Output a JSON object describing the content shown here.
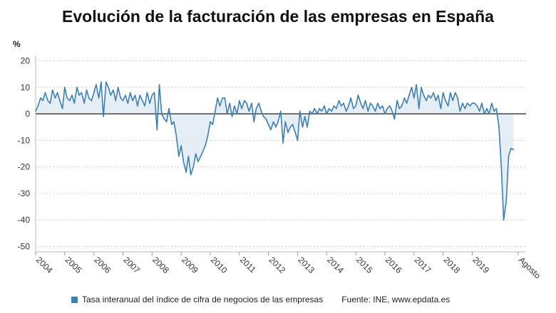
{
  "chart_data": {
    "type": "line",
    "title": "Evolución de la facturación de las empresas en España",
    "ylabel": "%",
    "xlabel": "",
    "ylim": [
      -52,
      22
    ],
    "yticks": [
      20,
      10,
      0,
      -10,
      -20,
      -30,
      -40,
      -50
    ],
    "xlim": [
      2004.0,
      2020.85
    ],
    "xticks": [
      {
        "label": "2004",
        "x": 2004.0
      },
      {
        "label": "2005",
        "x": 2005.0
      },
      {
        "label": "2006",
        "x": 2006.0
      },
      {
        "label": "2007",
        "x": 2007.0
      },
      {
        "label": "2008",
        "x": 2008.0
      },
      {
        "label": "2009",
        "x": 2009.0
      },
      {
        "label": "2010",
        "x": 2010.0
      },
      {
        "label": "2011",
        "x": 2011.0
      },
      {
        "label": "2012",
        "x": 2012.0
      },
      {
        "label": "2013",
        "x": 2013.0
      },
      {
        "label": "2014",
        "x": 2014.0
      },
      {
        "label": "2015",
        "x": 2015.0
      },
      {
        "label": "2016",
        "x": 2016.0
      },
      {
        "label": "2017",
        "x": 2017.0
      },
      {
        "label": "2018",
        "x": 2018.0
      },
      {
        "label": "2019",
        "x": 2019.0
      },
      {
        "label": "Agosto",
        "x": 2020.58
      }
    ],
    "grid": "horizontal dashed",
    "legend_position": "bottom",
    "colors": {
      "line": "#3f7fb0",
      "fill": "#dfeaf3",
      "zero": "#444444",
      "grid": "#cccccc"
    },
    "series": [
      {
        "name": "Tasa interanual del índice de cifra de negocios de las empresas",
        "points": [
          [
            2004.0,
            1
          ],
          [
            2004.08,
            3
          ],
          [
            2004.17,
            6
          ],
          [
            2004.25,
            5
          ],
          [
            2004.33,
            8
          ],
          [
            2004.42,
            5
          ],
          [
            2004.5,
            4
          ],
          [
            2004.58,
            9
          ],
          [
            2004.67,
            6
          ],
          [
            2004.75,
            8
          ],
          [
            2004.83,
            5
          ],
          [
            2004.92,
            2
          ],
          [
            2005.0,
            10
          ],
          [
            2005.08,
            6
          ],
          [
            2005.17,
            5
          ],
          [
            2005.25,
            7
          ],
          [
            2005.33,
            4
          ],
          [
            2005.42,
            10
          ],
          [
            2005.5,
            7
          ],
          [
            2005.58,
            8
          ],
          [
            2005.67,
            4
          ],
          [
            2005.75,
            9
          ],
          [
            2005.83,
            6
          ],
          [
            2005.92,
            5
          ],
          [
            2006.0,
            8
          ],
          [
            2006.08,
            11
          ],
          [
            2006.17,
            6
          ],
          [
            2006.25,
            12
          ],
          [
            2006.33,
            -1
          ],
          [
            2006.42,
            12
          ],
          [
            2006.5,
            10
          ],
          [
            2006.58,
            7
          ],
          [
            2006.67,
            9
          ],
          [
            2006.75,
            5
          ],
          [
            2006.83,
            10
          ],
          [
            2006.92,
            6
          ],
          [
            2007.0,
            5
          ],
          [
            2007.08,
            7
          ],
          [
            2007.17,
            4
          ],
          [
            2007.25,
            8
          ],
          [
            2007.33,
            5
          ],
          [
            2007.42,
            7
          ],
          [
            2007.5,
            3
          ],
          [
            2007.58,
            7
          ],
          [
            2007.67,
            5
          ],
          [
            2007.75,
            3
          ],
          [
            2007.83,
            8
          ],
          [
            2007.92,
            4
          ],
          [
            2008.0,
            7
          ],
          [
            2008.08,
            8
          ],
          [
            2008.17,
            -6
          ],
          [
            2008.25,
            11
          ],
          [
            2008.33,
            0
          ],
          [
            2008.42,
            -2
          ],
          [
            2008.5,
            -3
          ],
          [
            2008.58,
            2
          ],
          [
            2008.67,
            -4
          ],
          [
            2008.75,
            -3
          ],
          [
            2008.83,
            -8
          ],
          [
            2008.92,
            -16
          ],
          [
            2009.0,
            -12
          ],
          [
            2009.08,
            -18
          ],
          [
            2009.17,
            -22
          ],
          [
            2009.25,
            -16
          ],
          [
            2009.33,
            -23
          ],
          [
            2009.42,
            -20
          ],
          [
            2009.5,
            -15
          ],
          [
            2009.58,
            -18
          ],
          [
            2009.67,
            -16
          ],
          [
            2009.75,
            -14
          ],
          [
            2009.83,
            -12
          ],
          [
            2009.92,
            -8
          ],
          [
            2010.0,
            -3
          ],
          [
            2010.08,
            -4
          ],
          [
            2010.17,
            1
          ],
          [
            2010.25,
            6
          ],
          [
            2010.33,
            3
          ],
          [
            2010.42,
            6
          ],
          [
            2010.5,
            6
          ],
          [
            2010.58,
            0
          ],
          [
            2010.67,
            4
          ],
          [
            2010.75,
            -1
          ],
          [
            2010.83,
            3
          ],
          [
            2010.92,
            0
          ],
          [
            2011.0,
            5
          ],
          [
            2011.08,
            2
          ],
          [
            2011.17,
            5
          ],
          [
            2011.25,
            4
          ],
          [
            2011.33,
            1
          ],
          [
            2011.42,
            4
          ],
          [
            2011.5,
            -3
          ],
          [
            2011.58,
            2
          ],
          [
            2011.67,
            4
          ],
          [
            2011.75,
            1
          ],
          [
            2011.83,
            -1
          ],
          [
            2011.92,
            -2
          ],
          [
            2012.0,
            -4
          ],
          [
            2012.08,
            -6
          ],
          [
            2012.17,
            -3
          ],
          [
            2012.25,
            -5
          ],
          [
            2012.33,
            -3
          ],
          [
            2012.42,
            1
          ],
          [
            2012.5,
            -11
          ],
          [
            2012.58,
            -3
          ],
          [
            2012.67,
            -7
          ],
          [
            2012.75,
            -5
          ],
          [
            2012.83,
            -4
          ],
          [
            2012.92,
            -7
          ],
          [
            2013.0,
            -10
          ],
          [
            2013.08,
            1
          ],
          [
            2013.17,
            -5
          ],
          [
            2013.25,
            -1
          ],
          [
            2013.33,
            -5
          ],
          [
            2013.42,
            1
          ],
          [
            2013.5,
            0
          ],
          [
            2013.58,
            2
          ],
          [
            2013.67,
            0
          ],
          [
            2013.75,
            2
          ],
          [
            2013.83,
            1
          ],
          [
            2013.92,
            3
          ],
          [
            2014.0,
            0
          ],
          [
            2014.08,
            2
          ],
          [
            2014.17,
            1
          ],
          [
            2014.25,
            3
          ],
          [
            2014.33,
            2
          ],
          [
            2014.42,
            5
          ],
          [
            2014.5,
            3
          ],
          [
            2014.58,
            4
          ],
          [
            2014.67,
            1
          ],
          [
            2014.75,
            3
          ],
          [
            2014.83,
            6
          ],
          [
            2014.92,
            2
          ],
          [
            2015.0,
            3
          ],
          [
            2015.08,
            7
          ],
          [
            2015.17,
            4
          ],
          [
            2015.25,
            2
          ],
          [
            2015.33,
            5
          ],
          [
            2015.42,
            1
          ],
          [
            2015.5,
            4
          ],
          [
            2015.58,
            3
          ],
          [
            2015.67,
            1
          ],
          [
            2015.75,
            4
          ],
          [
            2015.83,
            2
          ],
          [
            2015.92,
            3
          ],
          [
            2016.0,
            0
          ],
          [
            2016.08,
            2
          ],
          [
            2016.17,
            3
          ],
          [
            2016.25,
            1
          ],
          [
            2016.33,
            -2
          ],
          [
            2016.42,
            5
          ],
          [
            2016.5,
            2
          ],
          [
            2016.58,
            3
          ],
          [
            2016.67,
            6
          ],
          [
            2016.75,
            4
          ],
          [
            2016.83,
            7
          ],
          [
            2016.92,
            10
          ],
          [
            2017.0,
            6
          ],
          [
            2017.08,
            11
          ],
          [
            2017.17,
            2
          ],
          [
            2017.25,
            10
          ],
          [
            2017.33,
            7
          ],
          [
            2017.42,
            5
          ],
          [
            2017.5,
            7
          ],
          [
            2017.58,
            6
          ],
          [
            2017.67,
            8
          ],
          [
            2017.75,
            5
          ],
          [
            2017.83,
            7
          ],
          [
            2017.92,
            2
          ],
          [
            2018.0,
            8
          ],
          [
            2018.08,
            5
          ],
          [
            2018.17,
            3
          ],
          [
            2018.25,
            8
          ],
          [
            2018.33,
            5
          ],
          [
            2018.42,
            8
          ],
          [
            2018.5,
            6
          ],
          [
            2018.58,
            1
          ],
          [
            2018.67,
            4
          ],
          [
            2018.75,
            2
          ],
          [
            2018.83,
            4
          ],
          [
            2018.92,
            3
          ],
          [
            2019.0,
            4
          ],
          [
            2019.08,
            4
          ],
          [
            2019.17,
            3
          ],
          [
            2019.25,
            1
          ],
          [
            2019.33,
            4
          ],
          [
            2019.42,
            0
          ],
          [
            2019.5,
            2
          ],
          [
            2019.58,
            0
          ],
          [
            2019.67,
            4
          ],
          [
            2019.75,
            1
          ],
          [
            2019.83,
            2
          ],
          [
            2019.92,
            -5
          ],
          [
            2020.0,
            -20
          ],
          [
            2020.08,
            -40
          ],
          [
            2020.17,
            -33
          ],
          [
            2020.25,
            -16
          ],
          [
            2020.33,
            -13
          ],
          [
            2020.42,
            -13.5
          ]
        ]
      }
    ],
    "source": "Fuente: INE, www.epdata.es"
  }
}
